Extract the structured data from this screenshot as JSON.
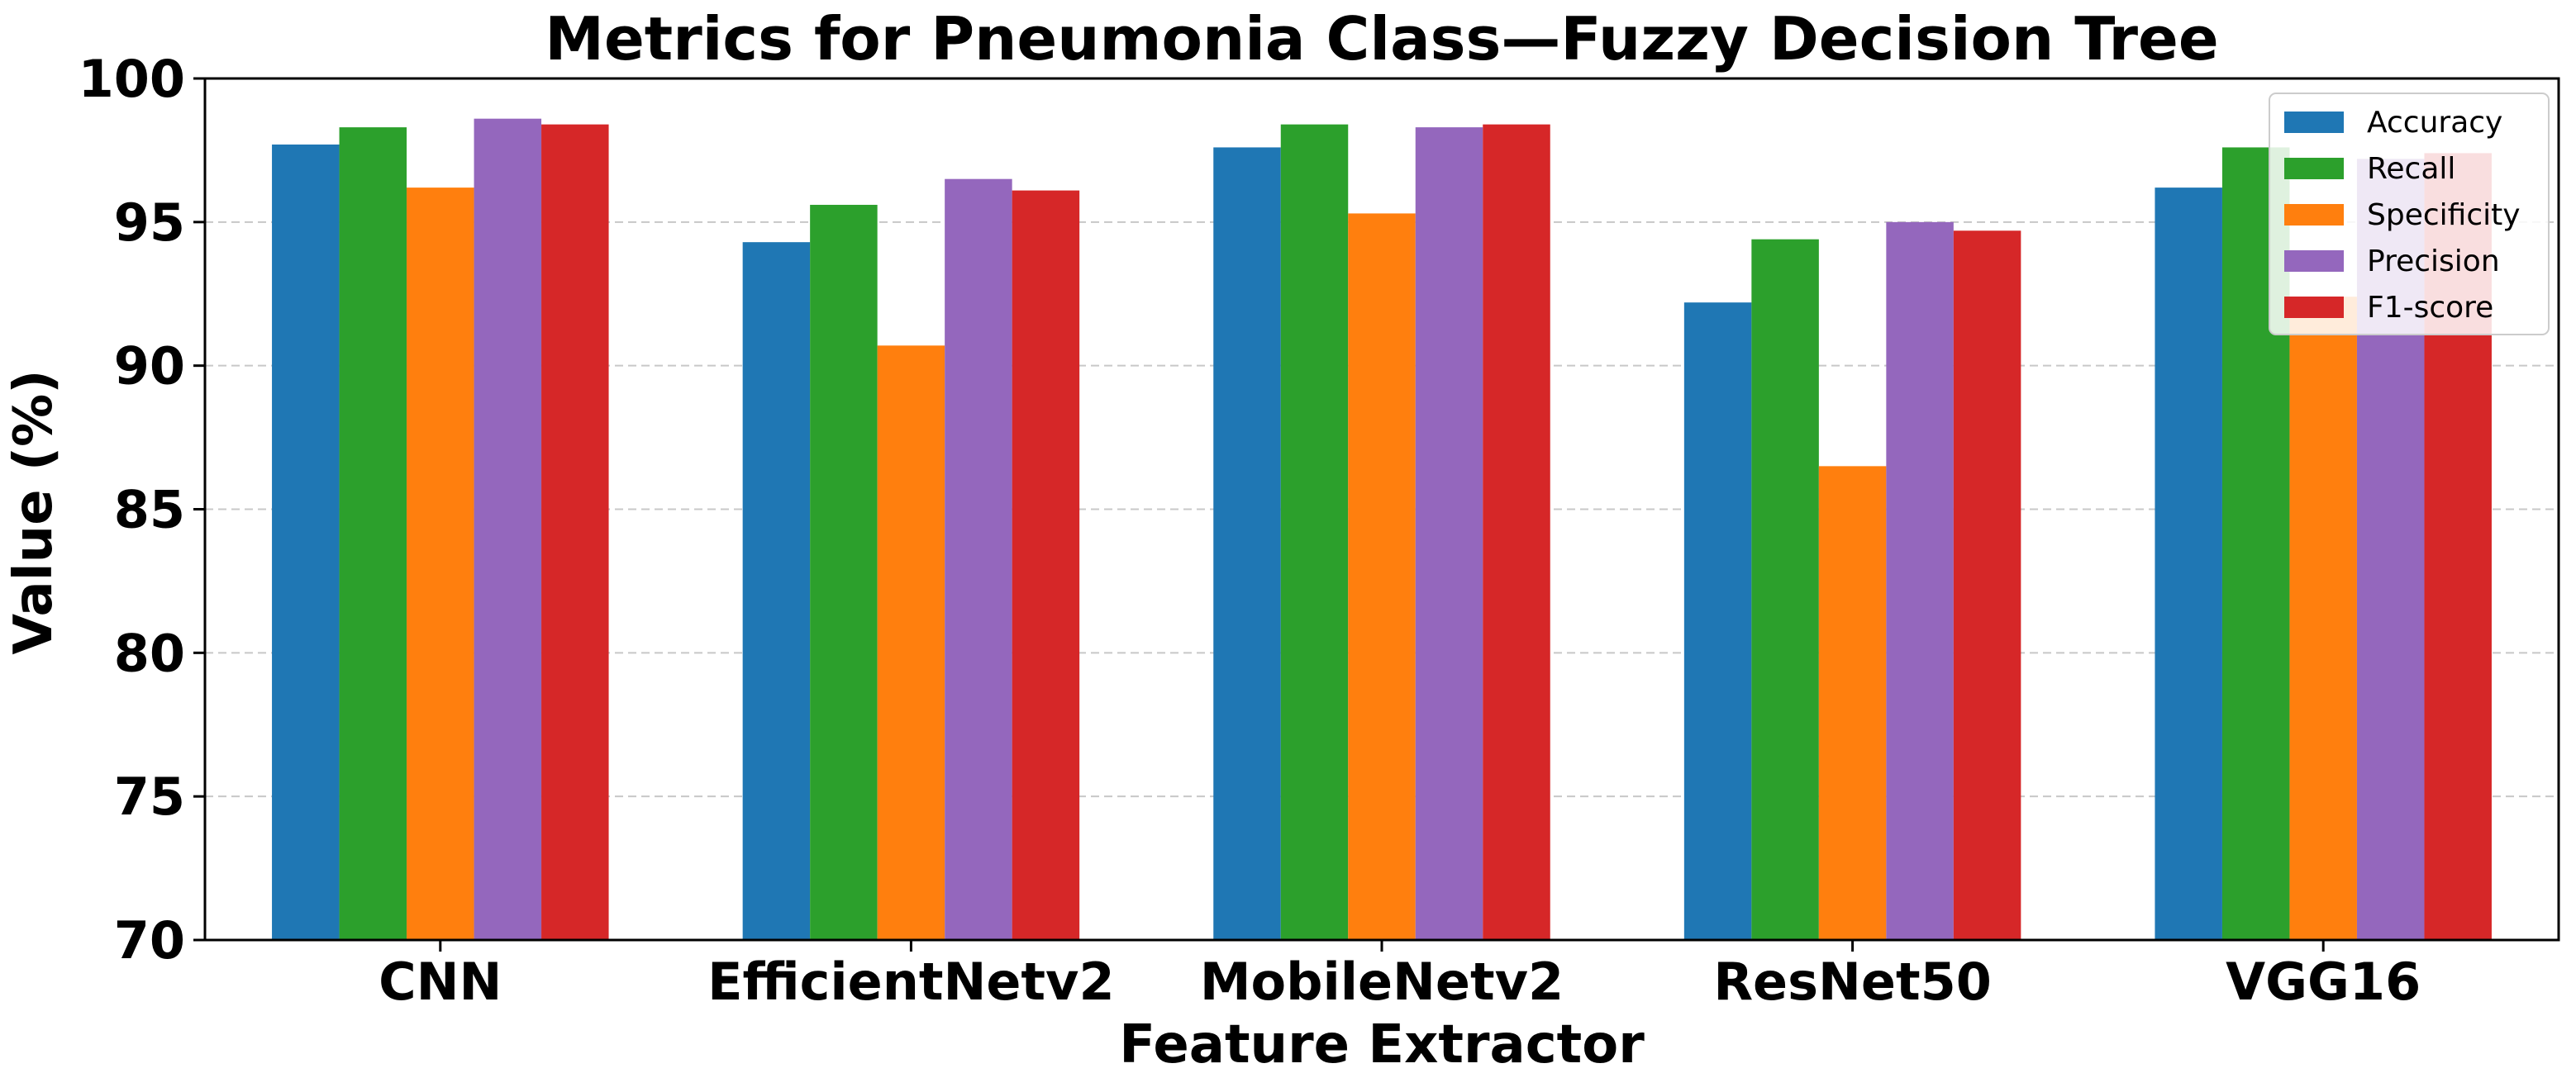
{
  "chart_data": {
    "type": "bar",
    "title": "Metrics for Pneumonia Class—Fuzzy Decision Tree",
    "xlabel": "Feature Extractor",
    "ylabel": "Value (%)",
    "ylim": [
      70,
      100
    ],
    "yticks": [
      70,
      75,
      80,
      85,
      90,
      95,
      100
    ],
    "grid": "horizontal-dashed",
    "legend_position": "top-right",
    "categories": [
      "CNN",
      "EfficientNetv2",
      "MobileNetv2",
      "ResNet50",
      "VGG16"
    ],
    "series": [
      {
        "name": "Accuracy",
        "color": "#1f77b4",
        "values": [
          97.7,
          94.3,
          97.6,
          92.2,
          96.2
        ]
      },
      {
        "name": "Recall",
        "color": "#2ca02c",
        "values": [
          98.3,
          95.6,
          98.4,
          94.4,
          97.6
        ]
      },
      {
        "name": "Specificity",
        "color": "#ff7f0e",
        "values": [
          96.2,
          90.7,
          95.3,
          86.5,
          92.4
        ]
      },
      {
        "name": "Precision",
        "color": "#9467bd",
        "values": [
          98.6,
          96.5,
          98.3,
          95.0,
          97.2
        ]
      },
      {
        "name": "F1-score",
        "color": "#d62728",
        "values": [
          98.4,
          96.1,
          98.4,
          94.7,
          97.4
        ]
      }
    ]
  }
}
